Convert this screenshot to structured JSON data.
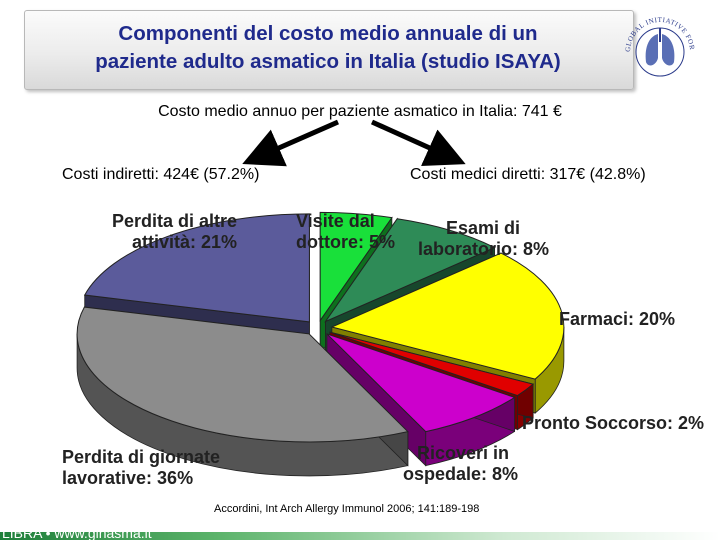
{
  "header": {
    "title_line1": "Componenti del costo medio annuale di un",
    "title_line2": "paziente adulto asmatico in Italia (studio ISAYA)",
    "logo_text": "GLOBAL INITIATIVE FOR ASTHMA"
  },
  "subtitle": "Costo medio annuo per paziente asmatico in Italia: 741 €",
  "branch_left": "Costi indiretti: 424€ (57.2%)",
  "branch_right": "Costi medici diretti: 317€ (42.8%)",
  "chart_data": {
    "type": "pie",
    "title": "",
    "slices": [
      {
        "label_line1": "Visite dal",
        "label_line2": "dottore: 5%",
        "value": 5,
        "color": "#19e03a"
      },
      {
        "label_line1": "Esami di",
        "label_line2": "laboratorio: 8%",
        "value": 8,
        "color": "#2e8b57"
      },
      {
        "label_line1": "Farmaci: 20%",
        "label_line2": "",
        "value": 20,
        "color": "#ffff00"
      },
      {
        "label_line1": "Pronto Soccorso: 2%",
        "label_line2": "",
        "value": 2,
        "color": "#e00000"
      },
      {
        "label_line1": "Ricoveri in",
        "label_line2": "ospedale: 8%",
        "value": 8,
        "color": "#cc00cc"
      },
      {
        "label_line1": "Perdita di giornate",
        "label_line2": "lavorative: 36%",
        "value": 36,
        "color": "#8c8c8c"
      },
      {
        "label_line1": "Perdita di altre",
        "label_line2": "attività: 21%",
        "value": 21,
        "color": "#5b5b9b"
      }
    ]
  },
  "citation": "Accordini, Int Arch Allergy Immunol 2006; 141:189-198",
  "footer": {
    "text": "LIBRA • www.ginasma.it"
  }
}
